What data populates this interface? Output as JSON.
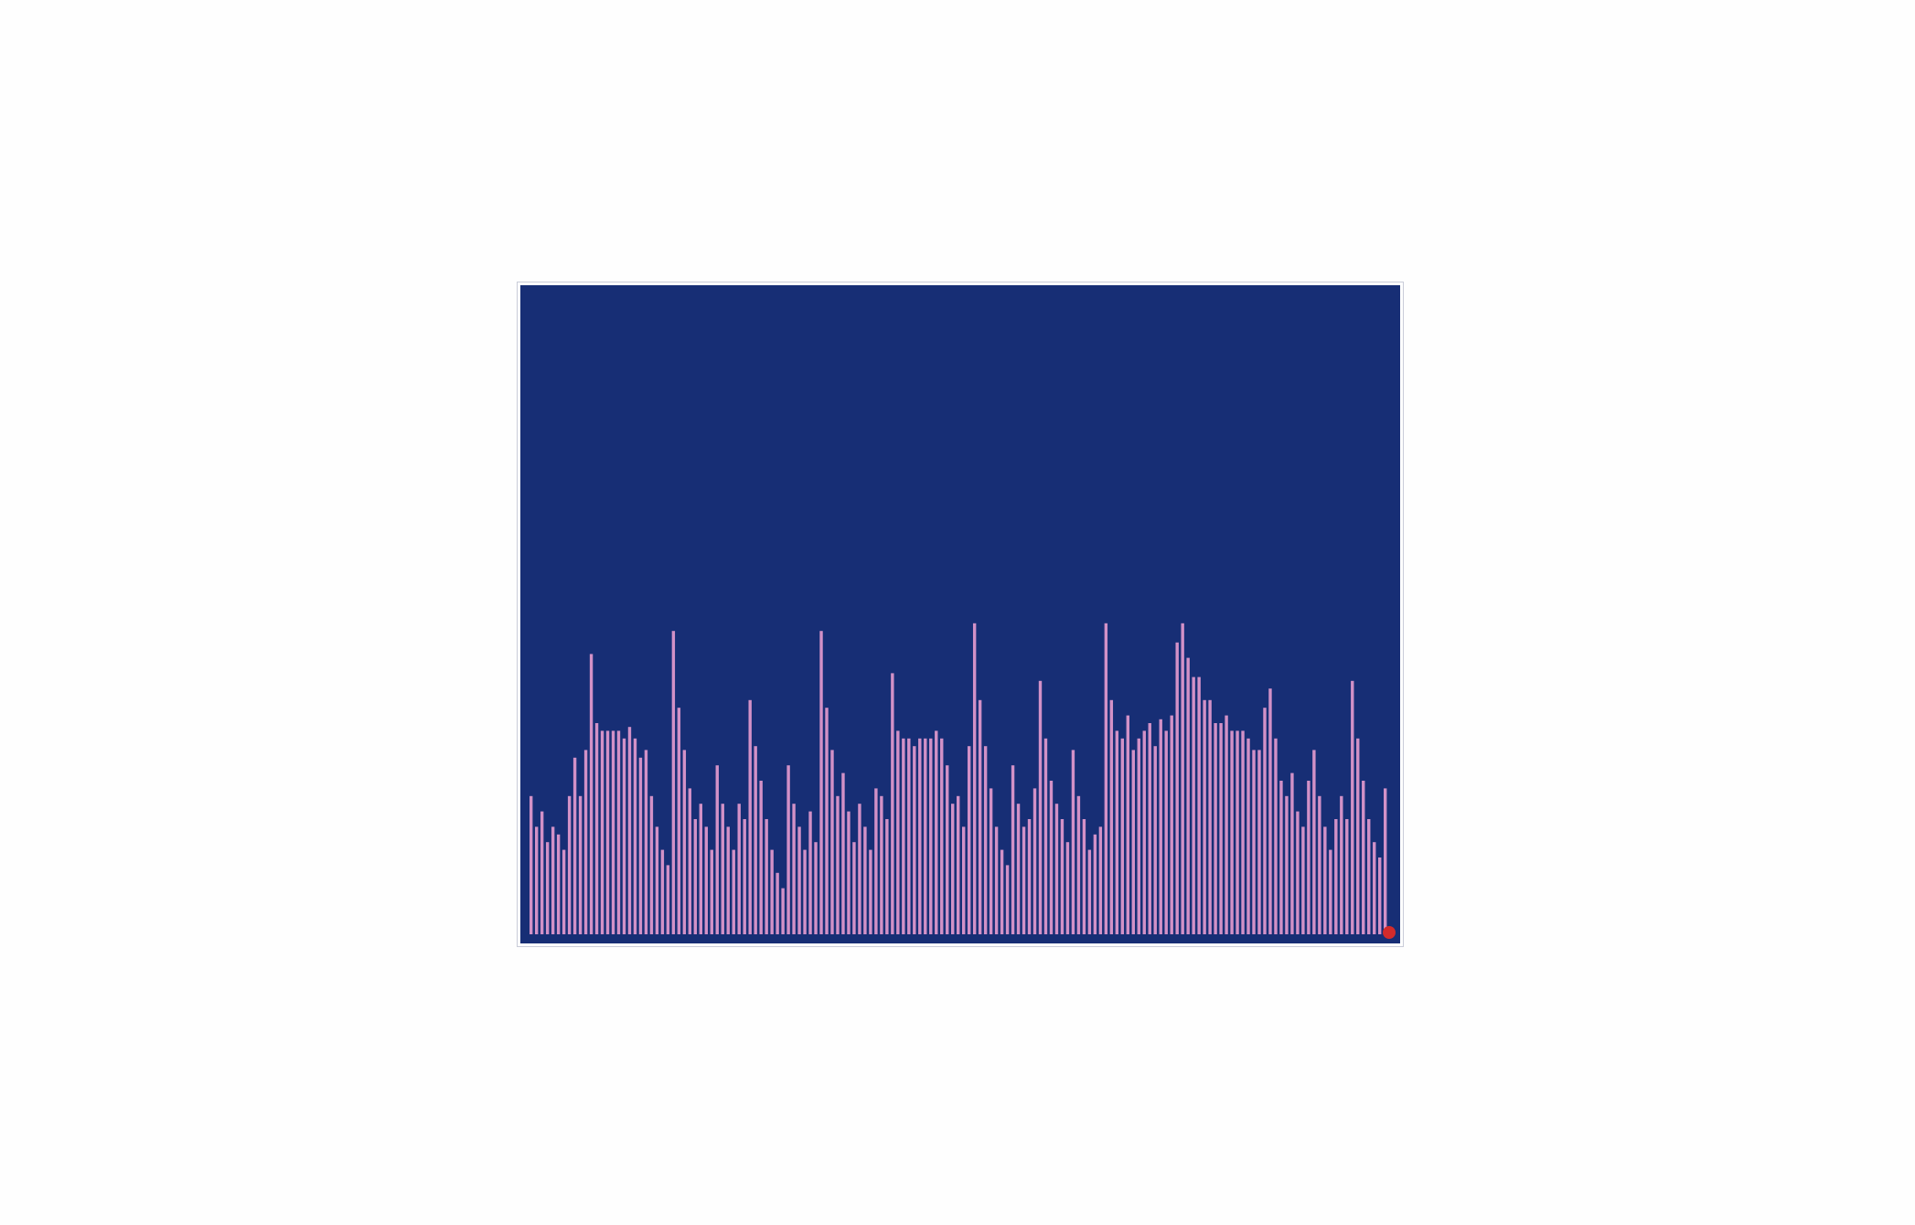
{
  "game": {
    "background_color": "#172e75",
    "bar_color": "#d291c7",
    "marker_color": "#d22b2b",
    "bar_levels": [
      0.36,
      0.28,
      0.32,
      0.24,
      0.28,
      0.26,
      0.22,
      0.36,
      0.46,
      0.36,
      0.48,
      0.73,
      0.55,
      0.53,
      0.53,
      0.53,
      0.53,
      0.51,
      0.54,
      0.51,
      0.46,
      0.48,
      0.36,
      0.28,
      0.22,
      0.18,
      0.79,
      0.59,
      0.48,
      0.38,
      0.3,
      0.34,
      0.28,
      0.22,
      0.44,
      0.34,
      0.28,
      0.22,
      0.34,
      0.3,
      0.61,
      0.49,
      0.4,
      0.3,
      0.22,
      0.16,
      0.12,
      0.44,
      0.34,
      0.28,
      0.22,
      0.32,
      0.24,
      0.79,
      0.59,
      0.48,
      0.36,
      0.42,
      0.32,
      0.24,
      0.34,
      0.28,
      0.22,
      0.38,
      0.36,
      0.3,
      0.68,
      0.53,
      0.51,
      0.51,
      0.49,
      0.51,
      0.51,
      0.51,
      0.53,
      0.51,
      0.44,
      0.34,
      0.36,
      0.28,
      0.49,
      0.81,
      0.61,
      0.49,
      0.38,
      0.28,
      0.22,
      0.18,
      0.44,
      0.34,
      0.28,
      0.3,
      0.38,
      0.66,
      0.51,
      0.4,
      0.34,
      0.3,
      0.24,
      0.48,
      0.36,
      0.3,
      0.22,
      0.26,
      0.28,
      0.81,
      0.61,
      0.53,
      0.51,
      0.57,
      0.48,
      0.51,
      0.53,
      0.55,
      0.49,
      0.56,
      0.53,
      0.57,
      0.76,
      0.81,
      0.72,
      0.67,
      0.67,
      0.61,
      0.61,
      0.55,
      0.55,
      0.57,
      0.53,
      0.53,
      0.53,
      0.51,
      0.48,
      0.48,
      0.59,
      0.64,
      0.51,
      0.4,
      0.36,
      0.42,
      0.32,
      0.28,
      0.4,
      0.48,
      0.36,
      0.28,
      0.22,
      0.3,
      0.36,
      0.3,
      0.66,
      0.51,
      0.4,
      0.3,
      0.24,
      0.2,
      0.38
    ],
    "marker_level": 0.0
  }
}
